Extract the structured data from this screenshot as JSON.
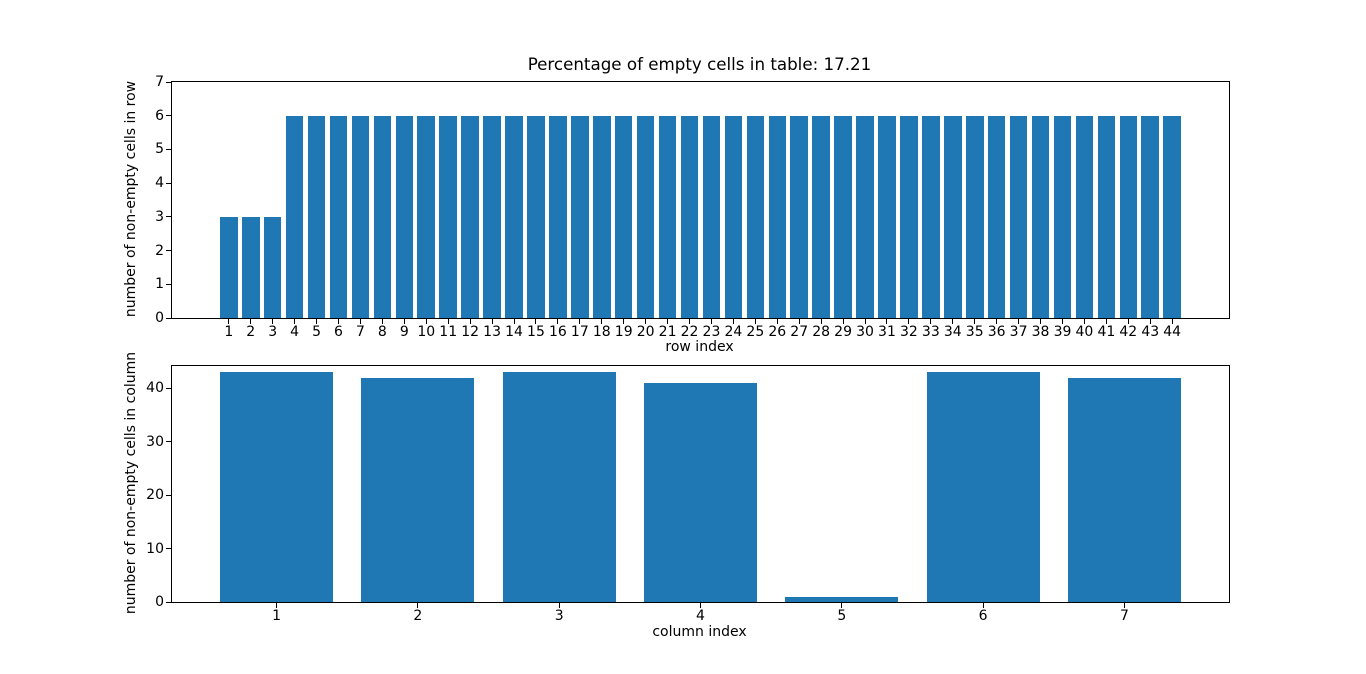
{
  "colors": {
    "bar": "#1f77b4",
    "axis": "#000000",
    "text": "#000000",
    "background": "#ffffff"
  },
  "chart_data": [
    {
      "type": "bar",
      "title": "Percentage of empty cells in table: 17.21",
      "xlabel": "row index",
      "ylabel": "number of non-empty cells in row",
      "categories": [
        1,
        2,
        3,
        4,
        5,
        6,
        7,
        8,
        9,
        10,
        11,
        12,
        13,
        14,
        15,
        16,
        17,
        18,
        19,
        20,
        21,
        22,
        23,
        24,
        25,
        26,
        27,
        28,
        29,
        30,
        31,
        32,
        33,
        34,
        35,
        36,
        37,
        38,
        39,
        40,
        41,
        42,
        43,
        44
      ],
      "values": [
        3,
        3,
        3,
        6,
        6,
        6,
        6,
        6,
        6,
        6,
        6,
        6,
        6,
        6,
        6,
        6,
        6,
        6,
        6,
        6,
        6,
        6,
        6,
        6,
        6,
        6,
        6,
        6,
        6,
        6,
        6,
        6,
        6,
        6,
        6,
        6,
        6,
        6,
        6,
        6,
        6,
        6,
        6,
        6
      ],
      "bar_width": 0.8,
      "xlim": [
        -1.59,
        46.59
      ],
      "ylim": [
        0,
        7
      ],
      "yticks": [
        0,
        1,
        2,
        3,
        4,
        5,
        6,
        7
      ],
      "grid": false,
      "legend": null
    },
    {
      "type": "bar",
      "xlabel": "column index",
      "ylabel": "number of non-empty cells in column",
      "categories": [
        1,
        2,
        3,
        4,
        5,
        6,
        7
      ],
      "values": [
        43,
        42,
        43,
        41,
        1,
        43,
        42
      ],
      "bar_width": 0.8,
      "xlim": [
        0.26,
        7.74
      ],
      "ylim": [
        0,
        44.15
      ],
      "yticks": [
        0,
        10,
        20,
        30,
        40
      ],
      "grid": false,
      "legend": null
    }
  ]
}
